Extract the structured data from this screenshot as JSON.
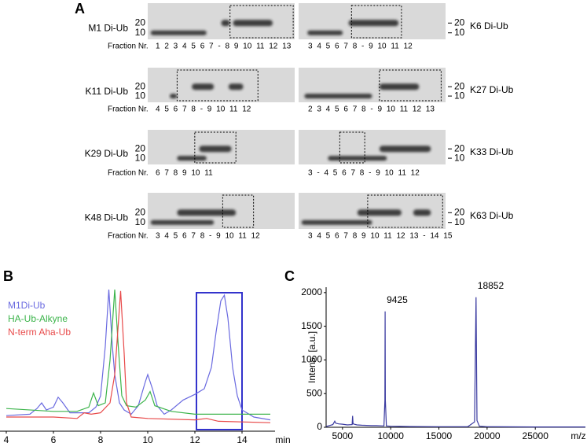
{
  "panel_labels": [
    "A",
    "B",
    "C"
  ],
  "gels": [
    {
      "name": "M1 Di-Ub",
      "markers": [
        "20",
        "10"
      ],
      "fraction_label": "Fraction Nr.",
      "fractions": "1 2 3 4 5 6 7 - 8 9 10 11 12 13"
    },
    {
      "name": "K6 Di-Ub",
      "markers": [
        "20",
        "10"
      ],
      "fractions": "3 4 5 6 7 8 - 9 10 11 12"
    },
    {
      "name": "K11 Di-Ub",
      "markers": [
        "20",
        "10"
      ],
      "fraction_label": "Fraction Nr.",
      "fractions": "4 5 6 7 8 - 9 10 11 12"
    },
    {
      "name": "K27 Di-Ub",
      "markers": [
        "20",
        "10"
      ],
      "fractions": "2 3 4 5 6 7 8 - 9 10 11 12 13"
    },
    {
      "name": "K29 Di-Ub",
      "markers": [
        "20",
        "10"
      ],
      "fraction_label": "Fraction Nr.",
      "fractions": "6 7 8 9 10 11"
    },
    {
      "name": "K33 Di-Ub",
      "markers": [
        "20",
        "10"
      ],
      "fractions": "3 - 4 5 6 7 8 - 9 10 11 12"
    },
    {
      "name": "K48 Di-Ub",
      "markers": [
        "20",
        "10"
      ],
      "fraction_label": "Fraction Nr.",
      "fractions": "3 4 5 6 7 8 - 9 10 11 12"
    },
    {
      "name": "K63 Di-Ub",
      "markers": [
        "20",
        "10"
      ],
      "fractions": "3 4 5 6 7 8 9 10 11 12 13 - 14 15"
    }
  ],
  "chart_data": [
    {
      "type": "line",
      "xlabel": "min",
      "xlim": [
        4,
        15.2
      ],
      "ylim": [
        0,
        100
      ],
      "xticks": [
        4,
        6,
        8,
        10,
        12,
        14
      ],
      "series": [
        {
          "name": "M1Di-Ub",
          "color": "#6a6ae0",
          "x": [
            4,
            5,
            5.3,
            5.5,
            5.7,
            6,
            6.2,
            6.4,
            6.7,
            7,
            7.5,
            7.8,
            8,
            8.2,
            8.35,
            8.5,
            8.6,
            8.8,
            9,
            9.3,
            9.6,
            9.9,
            10,
            10.2,
            10.4,
            10.7,
            11,
            11.5,
            12,
            12.4,
            12.7,
            12.9,
            13.1,
            13.25,
            13.4,
            13.6,
            13.8,
            14,
            14.5,
            15.2
          ],
          "values": [
            11,
            12,
            16,
            20,
            15,
            17,
            24,
            20,
            13,
            13,
            13,
            17,
            25,
            60,
            100,
            60,
            40,
            20,
            15,
            12,
            18,
            35,
            40,
            30,
            18,
            12,
            15,
            22,
            26,
            30,
            45,
            70,
            92,
            96,
            80,
            45,
            25,
            15,
            10,
            8
          ]
        },
        {
          "name": "HA-Ub-Alkyne",
          "color": "#3cb44b",
          "x": [
            4,
            6,
            7,
            7.5,
            7.7,
            7.9,
            8.2,
            8.4,
            8.6,
            8.75,
            8.9,
            9.1,
            9.5,
            9.9,
            10.1,
            10.3,
            11,
            12,
            13,
            14,
            15.2
          ],
          "values": [
            16,
            14,
            14,
            17,
            27,
            18,
            20,
            50,
            100,
            60,
            25,
            18,
            17,
            22,
            28,
            18,
            14,
            12,
            12,
            12,
            12
          ]
        },
        {
          "name": "N-term Aha-Ub",
          "color": "#e84a4a",
          "x": [
            4,
            6,
            7,
            7.3,
            7.6,
            8,
            8.4,
            8.6,
            8.85,
            9,
            9.1,
            9.3,
            10,
            12,
            12.5,
            13,
            15.2
          ],
          "values": [
            10,
            10,
            9,
            13,
            12,
            13,
            20,
            40,
            99,
            55,
            20,
            10,
            9,
            8,
            9,
            7,
            6
          ]
        }
      ]
    },
    {
      "type": "line",
      "xlabel": "m/z",
      "ylabel": "Intens. [a.u.]",
      "xlim": [
        3300,
        30200
      ],
      "ylim": [
        0,
        2080
      ],
      "xticks": [
        5000,
        10000,
        15000,
        20000,
        25000
      ],
      "yticks": [
        0,
        500,
        1000,
        1500,
        2000
      ],
      "annotations": [
        9425,
        18852
      ],
      "series": [
        {
          "color": "#3a3aa0",
          "x": [
            3300,
            4000,
            4200,
            4300,
            4600,
            5000,
            5500,
            6000,
            6050,
            6100,
            6500,
            7000,
            7500,
            8000,
            8500,
            9300,
            9400,
            9425,
            9450,
            9550,
            10000,
            12000,
            15000,
            18000,
            18700,
            18852,
            18950,
            19200,
            20000,
            25000,
            30200
          ],
          "values": [
            10,
            40,
            90,
            60,
            50,
            45,
            35,
            40,
            170,
            50,
            35,
            30,
            28,
            25,
            25,
            20,
            400,
            1720,
            400,
            20,
            15,
            10,
            8,
            8,
            80,
            1930,
            100,
            15,
            8,
            5,
            5
          ]
        }
      ]
    }
  ]
}
